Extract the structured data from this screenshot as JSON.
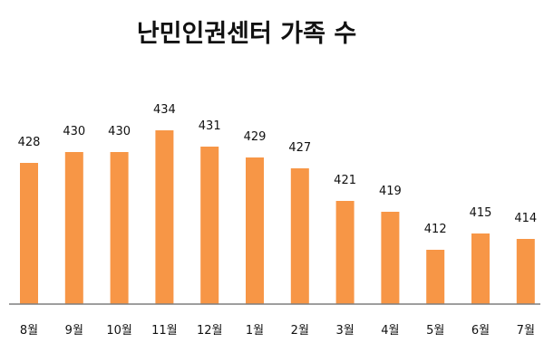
{
  "chart_data": {
    "type": "bar",
    "title": "난민인권센터 가족 수",
    "categories": [
      "8월",
      "9월",
      "10월",
      "11월",
      "12월",
      "1월",
      "2월",
      "3월",
      "4월",
      "5월",
      "6월",
      "7월"
    ],
    "values": [
      428,
      430,
      430,
      434,
      431,
      429,
      427,
      421,
      419,
      412,
      415,
      414
    ],
    "data_labels": [
      "428",
      "430",
      "430",
      "434",
      "431",
      "429",
      "427",
      "421",
      "419",
      "412",
      "415",
      "414"
    ],
    "bar_color": "#F79646",
    "axis_color": "#7f7f7f",
    "ylim": [
      402,
      435
    ],
    "grid": false,
    "legend": "none"
  }
}
